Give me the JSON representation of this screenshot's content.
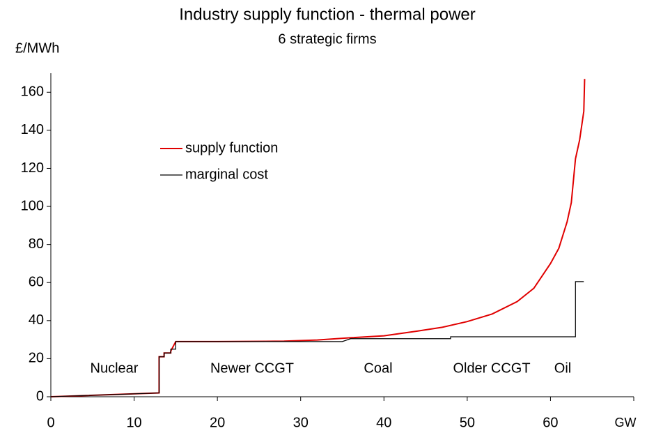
{
  "chart_data": {
    "type": "line",
    "title": "Industry supply function - thermal power",
    "subtitle": "6 strategic firms",
    "y_label": "£/MWh",
    "annotations": [
      "Nuclear",
      "Newer CCGT",
      "Coal",
      "Older CCGT",
      "Oil"
    ],
    "xlim": [
      0,
      70
    ],
    "ylim": [
      0,
      170
    ],
    "xticks": [
      0,
      10,
      20,
      30,
      40,
      50,
      60,
      {
        "value": 70,
        "label": "GW"
      }
    ],
    "yticks": [
      0,
      20,
      40,
      60,
      80,
      100,
      120,
      140,
      160
    ],
    "grid": false,
    "legend": "upper-left",
    "series": [
      {
        "name": "supply function",
        "color": "#e00000",
        "x": [
          0,
          13,
          13,
          13.6,
          13.6,
          14.4,
          14.4,
          15,
          20,
          28,
          32,
          36,
          40,
          44,
          47,
          50,
          53,
          56,
          58,
          60,
          61,
          62,
          62.5,
          63,
          63.5,
          64,
          64.1
        ],
        "values": [
          0,
          2,
          21,
          21,
          23,
          23,
          24,
          29,
          29,
          29.2,
          29.8,
          31,
          32,
          34.5,
          36.5,
          39.5,
          43.5,
          50,
          57,
          70,
          78,
          92,
          102,
          125,
          135,
          150,
          167
        ]
      },
      {
        "name": "marginal cost",
        "color": "#000000",
        "x": [
          0,
          13,
          13,
          13.6,
          13.6,
          14.4,
          14.4,
          15,
          15,
          35,
          36,
          48,
          48,
          63,
          63,
          64
        ],
        "values": [
          0,
          2,
          21,
          21,
          23,
          23,
          25,
          25,
          29,
          29,
          30.5,
          30.5,
          31.5,
          31.5,
          60.5,
          60.5
        ]
      }
    ]
  }
}
